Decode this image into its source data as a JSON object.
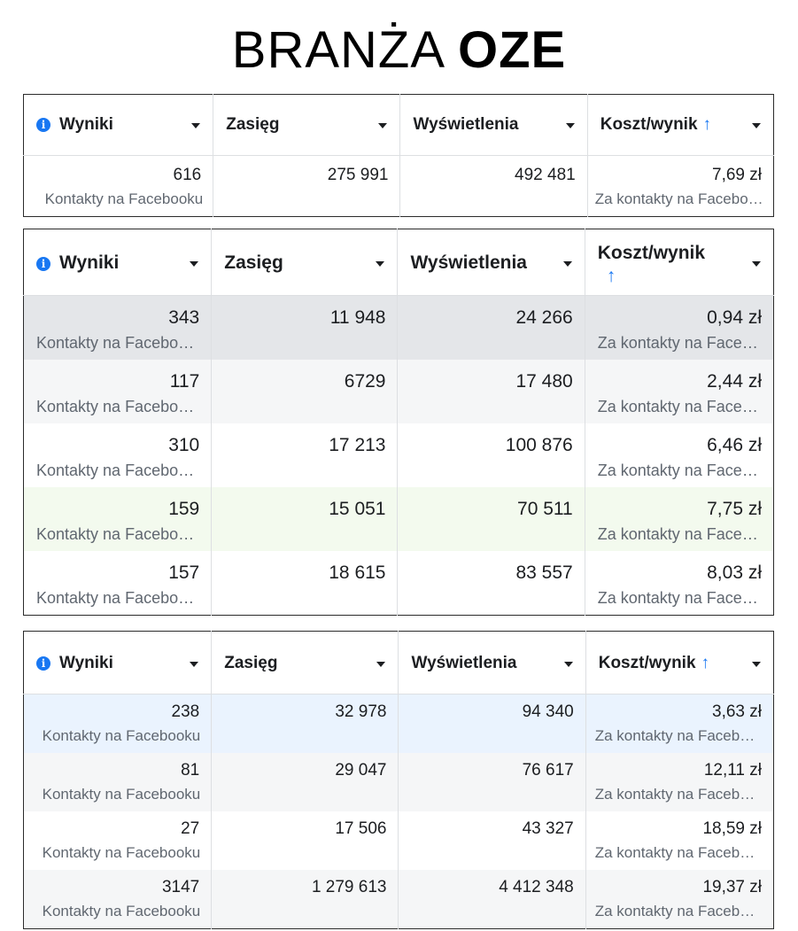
{
  "title": {
    "light": "BRANŻA",
    "bold": "OZE"
  },
  "columns": [
    "Wyniki",
    "Zasięg",
    "Wyświetlenia",
    "Koszt/wynik"
  ],
  "sort_arrow": "↑",
  "info_glyph": "i",
  "tables": [
    {
      "rows": [
        {
          "wyniki": "616",
          "wyniki_sub": "Kontakty na Facebooku",
          "zasieg": "275 991",
          "wyswietlenia": "492 481",
          "koszt": "7,69 zł",
          "koszt_sub": "Za kontakty na Facebooku"
        }
      ]
    },
    {
      "rows": [
        {
          "wyniki": "343",
          "wyniki_sub": "Kontakty na Facebooku",
          "zasieg": "11 948",
          "wyswietlenia": "24 266",
          "koszt": "0,94 zł",
          "koszt_sub": "Za kontakty na Facebooku"
        },
        {
          "wyniki": "117",
          "wyniki_sub": "Kontakty na Facebooku",
          "zasieg": "6729",
          "wyswietlenia": "17 480",
          "koszt": "2,44 zł",
          "koszt_sub": "Za kontakty na Facebooku"
        },
        {
          "wyniki": "310",
          "wyniki_sub": "Kontakty na Facebooku",
          "zasieg": "17 213",
          "wyswietlenia": "100 876",
          "koszt": "6,46 zł",
          "koszt_sub": "Za kontakty na Facebooku"
        },
        {
          "wyniki": "159",
          "wyniki_sub": "Kontakty na Facebooku",
          "zasieg": "15 051",
          "wyswietlenia": "70 511",
          "koszt": "7,75 zł",
          "koszt_sub": "Za kontakty na Facebooku"
        },
        {
          "wyniki": "157",
          "wyniki_sub": "Kontakty na Facebooku",
          "zasieg": "18 615",
          "wyswietlenia": "83 557",
          "koszt": "8,03 zł",
          "koszt_sub": "Za kontakty na Facebooku"
        }
      ]
    },
    {
      "rows": [
        {
          "wyniki": "238",
          "wyniki_sub": "Kontakty na Facebooku",
          "zasieg": "32 978",
          "wyswietlenia": "94 340",
          "koszt": "3,63 zł",
          "koszt_sub": "Za kontakty na Facebooku"
        },
        {
          "wyniki": "81",
          "wyniki_sub": "Kontakty na Facebooku",
          "zasieg": "29 047",
          "wyswietlenia": "76 617",
          "koszt": "12,11 zł",
          "koszt_sub": "Za kontakty na Facebooku"
        },
        {
          "wyniki": "27",
          "wyniki_sub": "Kontakty na Facebooku",
          "zasieg": "17 506",
          "wyswietlenia": "43 327",
          "koszt": "18,59 zł",
          "koszt_sub": "Za kontakty na Facebooku"
        },
        {
          "wyniki": "3147",
          "wyniki_sub": "Kontakty na Facebooku",
          "zasieg": "1 279 613",
          "wyswietlenia": "4 412 348",
          "koszt": "19,37 zł",
          "koszt_sub": "Za kontakty na Facebooku"
        }
      ]
    }
  ],
  "colors": {
    "accent": "#1877f2",
    "highlight_gray": "#e4e6e9",
    "highlight_green": "#f3faee",
    "highlight_blue": "#eaf3fe",
    "row_alt": "#f5f6f7"
  }
}
